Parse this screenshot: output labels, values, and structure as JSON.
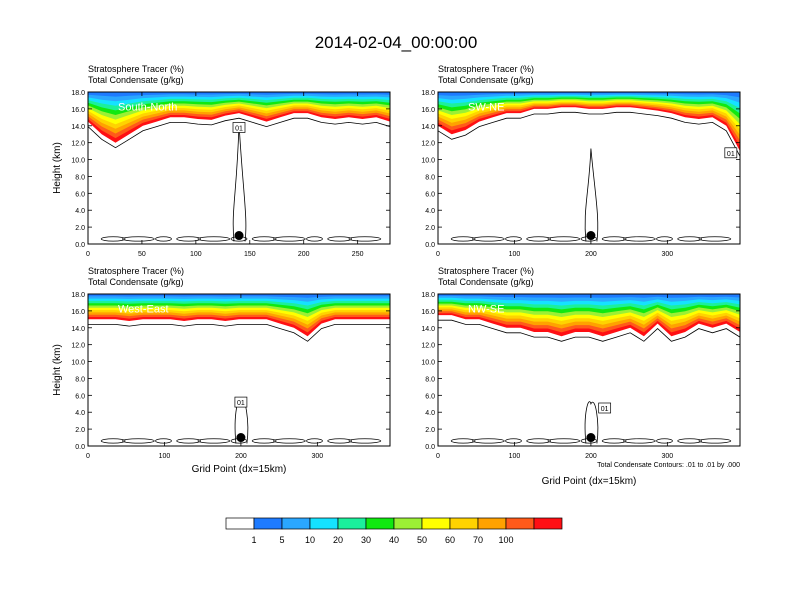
{
  "title": "2014-02-04_00:00:00",
  "colorbar": {
    "colors": [
      "#ffffff",
      "#1e7bff",
      "#2aa7ff",
      "#15e2ff",
      "#1bf09c",
      "#10e910",
      "#9cf035",
      "#ffff00",
      "#ffd300",
      "#ffa200",
      "#ff5a1a",
      "#ff0f14"
    ],
    "labels": [
      "1",
      "5",
      "10",
      "20",
      "30",
      "40",
      "50",
      "60",
      "70",
      "100"
    ]
  },
  "chart_data": [
    {
      "type": "contour",
      "subtitle1": "Stratosphere Tracer   (%)",
      "subtitle2": "Total Condensate   (g/kg)",
      "section": "South-North",
      "ylabel": "Height (km)",
      "xlabel": "",
      "xlim": [
        0,
        280
      ],
      "ylim": [
        0,
        18
      ],
      "xticks": [
        "0",
        "50",
        "100",
        "150",
        "200",
        "250"
      ],
      "yticks": [
        "0.0",
        "2.0",
        "4.0",
        "6.0",
        "8.0",
        "10.0",
        "12.0",
        "14.0",
        "16.0",
        "18.0"
      ],
      "tracer_base_km": [
        14.5,
        13.0,
        12.0,
        13.0,
        14.0,
        14.5,
        15.0,
        15.0,
        14.8,
        14.7,
        15.2,
        15.5,
        15.0,
        14.5,
        15.0,
        15.5,
        15.5,
        15.0,
        14.8,
        15.0,
        14.8,
        15.0,
        14.5
      ],
      "contour_label": "01",
      "contour_label_x": 140,
      "contour_label_y": 13.8,
      "marker_x": 140,
      "marker_y": 1.0
    },
    {
      "type": "contour",
      "subtitle1": "Stratosphere Tracer   (%)",
      "subtitle2": "Total Condensate   (g/kg)",
      "section": "SW-NE",
      "ylabel": "",
      "xlabel": "",
      "xlim": [
        0,
        395
      ],
      "ylim": [
        0,
        18
      ],
      "xticks": [
        "0",
        "100",
        "200",
        "300"
      ],
      "yticks": [
        "0.0",
        "2.0",
        "4.0",
        "6.0",
        "8.0",
        "10.0",
        "12.0",
        "14.0",
        "16.0",
        "18.0"
      ],
      "tracer_base_km": [
        14.0,
        13.0,
        13.5,
        14.5,
        15.0,
        15.5,
        15.5,
        16.0,
        16.0,
        16.2,
        16.2,
        16.0,
        16.0,
        16.2,
        16.2,
        16.0,
        15.8,
        15.5,
        15.0,
        14.8,
        15.0,
        14.0,
        11.0
      ],
      "contour_label": "01",
      "contour_label_x": 383,
      "contour_label_y": 10.8,
      "marker_x": 200,
      "marker_y": 1.0
    },
    {
      "type": "contour",
      "subtitle1": "Stratosphere Tracer   (%)",
      "subtitle2": "Total Condensate   (g/kg)",
      "section": "West-East",
      "ylabel": "Height (km)",
      "xlabel": "Grid Point (dx=15km)",
      "xlim": [
        0,
        395
      ],
      "ylim": [
        0,
        18
      ],
      "xticks": [
        "0",
        "100",
        "200",
        "300"
      ],
      "yticks": [
        "0.0",
        "2.0",
        "4.0",
        "6.0",
        "8.0",
        "10.0",
        "12.0",
        "14.0",
        "16.0",
        "18.0"
      ],
      "tracer_base_km": [
        15.0,
        15.0,
        15.0,
        14.8,
        15.0,
        15.0,
        15.0,
        14.8,
        15.0,
        15.0,
        14.8,
        15.0,
        15.0,
        15.0,
        14.5,
        14.0,
        13.0,
        14.5,
        15.0,
        15.0,
        15.0,
        15.0,
        15.0
      ],
      "contour_label": "01",
      "contour_label_x": 200,
      "contour_label_y": 5.2,
      "marker_x": 200,
      "marker_y": 1.0
    },
    {
      "type": "contour",
      "subtitle1": "Stratosphere Tracer   (%)",
      "subtitle2": "Total Condensate   (g/kg)",
      "section": "NW-SE",
      "ylabel": "",
      "xlabel": "Grid Point (dx=15km)",
      "xlim": [
        0,
        395
      ],
      "ylim": [
        0,
        18
      ],
      "xticks": [
        "0",
        "100",
        "200",
        "300"
      ],
      "yticks": [
        "0.0",
        "2.0",
        "4.0",
        "6.0",
        "8.0",
        "10.0",
        "12.0",
        "14.0",
        "16.0",
        "18.0"
      ],
      "tracer_base_km": [
        15.5,
        15.5,
        15.0,
        15.0,
        14.5,
        14.0,
        14.0,
        13.5,
        13.5,
        13.0,
        13.5,
        13.5,
        13.0,
        13.5,
        14.0,
        13.0,
        14.5,
        13.0,
        13.5,
        14.5,
        14.0,
        14.5,
        13.5
      ],
      "contour_label": "01",
      "contour_label_x": 218,
      "contour_label_y": 4.5,
      "marker_x": 200,
      "marker_y": 1.0,
      "footnote": "Total Condensate Contours: .01 to .01 by .000"
    }
  ]
}
